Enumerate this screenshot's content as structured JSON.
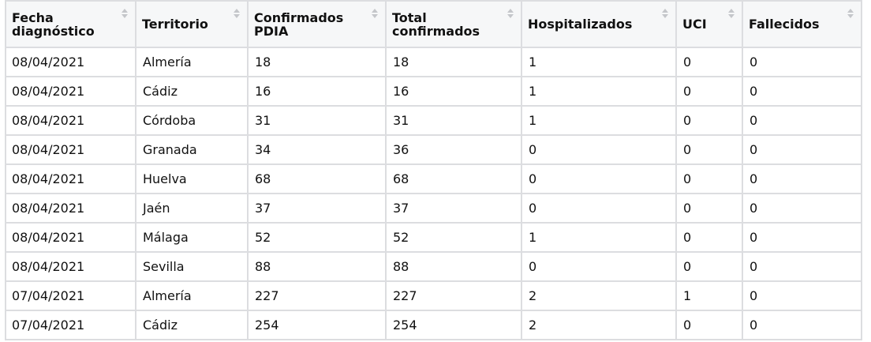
{
  "table": {
    "columns": [
      "Fecha\ndiagnóstico",
      "Territorio",
      "Confirmados\nPDIA",
      "Total\nconfirmados",
      "Hospitalizados",
      "UCI",
      "Fallecidos"
    ],
    "rows": [
      [
        "08/04/2021",
        "Almería",
        "18",
        "18",
        "1",
        "0",
        "0"
      ],
      [
        "08/04/2021",
        "Cádiz",
        "16",
        "16",
        "1",
        "0",
        "0"
      ],
      [
        "08/04/2021",
        "Córdoba",
        "31",
        "31",
        "1",
        "0",
        "0"
      ],
      [
        "08/04/2021",
        "Granada",
        "34",
        "36",
        "0",
        "0",
        "0"
      ],
      [
        "08/04/2021",
        "Huelva",
        "68",
        "68",
        "0",
        "0",
        "0"
      ],
      [
        "08/04/2021",
        "Jaén",
        "37",
        "37",
        "0",
        "0",
        "0"
      ],
      [
        "08/04/2021",
        "Málaga",
        "52",
        "52",
        "1",
        "0",
        "0"
      ],
      [
        "08/04/2021",
        "Sevilla",
        "88",
        "88",
        "0",
        "0",
        "0"
      ],
      [
        "07/04/2021",
        "Almería",
        "227",
        "227",
        "2",
        "1",
        "0"
      ],
      [
        "07/04/2021",
        "Cádiz",
        "254",
        "254",
        "2",
        "0",
        "0"
      ]
    ]
  },
  "icons": {
    "sort": "sort-icon"
  }
}
